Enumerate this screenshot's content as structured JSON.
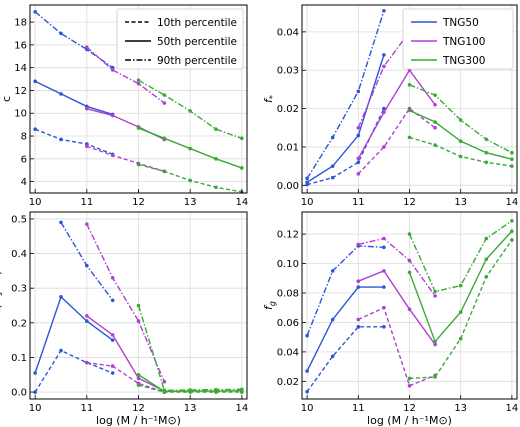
{
  "chart_data": [
    {
      "type": "line",
      "panel": "top-left",
      "ylabel": "c",
      "xlabel": "",
      "xlim": [
        9.9,
        14.1
      ],
      "ylim": [
        3,
        19.5
      ],
      "xticks": [
        10,
        11,
        12,
        13,
        14
      ],
      "yticks": [
        4,
        6,
        8,
        10,
        12,
        14,
        16,
        18
      ],
      "legend": {
        "placement": "top-right",
        "entries": [
          {
            "label": "10th percentile",
            "dash": "dashed"
          },
          {
            "label": "50th percentile",
            "dash": "solid"
          },
          {
            "label": "90th percentile",
            "dash": "dashdot"
          }
        ]
      },
      "series": [
        {
          "group": "TNG50",
          "color": "#2c55d8",
          "dash": "dashed",
          "x": [
            10,
            10.5,
            11,
            11.5
          ],
          "y": [
            8.6,
            7.7,
            7.3,
            6.4
          ]
        },
        {
          "group": "TNG50",
          "color": "#2c55d8",
          "dash": "solid",
          "x": [
            10,
            10.5,
            11,
            11.5
          ],
          "y": [
            12.8,
            11.7,
            10.6,
            9.9
          ]
        },
        {
          "group": "TNG50",
          "color": "#2c55d8",
          "dash": "dashdot",
          "x": [
            10,
            10.5,
            11,
            11.5
          ],
          "y": [
            18.9,
            17.0,
            15.6,
            14.0
          ]
        },
        {
          "group": "TNG100",
          "color": "#b040d0",
          "dash": "dashed",
          "x": [
            11,
            11.5,
            12,
            12.5
          ],
          "y": [
            7.1,
            6.3,
            5.6,
            4.9
          ]
        },
        {
          "group": "TNG100",
          "color": "#b040d0",
          "dash": "solid",
          "x": [
            11,
            11.5,
            12,
            12.5
          ],
          "y": [
            10.4,
            9.8,
            8.8,
            7.7
          ]
        },
        {
          "group": "TNG100",
          "color": "#b040d0",
          "dash": "dashdot",
          "x": [
            11,
            11.5,
            12,
            12.5
          ],
          "y": [
            15.8,
            13.8,
            12.6,
            10.9
          ]
        },
        {
          "group": "TNG300",
          "color": "#3aaa35",
          "dash": "dashed",
          "x": [
            12,
            12.5,
            13,
            13.5,
            14
          ],
          "y": [
            5.5,
            4.9,
            4.1,
            3.5,
            3.1
          ]
        },
        {
          "group": "TNG300",
          "color": "#3aaa35",
          "dash": "solid",
          "x": [
            12,
            12.5,
            13,
            13.5,
            14
          ],
          "y": [
            8.7,
            7.8,
            6.9,
            6.0,
            5.2
          ]
        },
        {
          "group": "TNG300",
          "color": "#3aaa35",
          "dash": "dashdot",
          "x": [
            12,
            12.5,
            13,
            13.5,
            14
          ],
          "y": [
            12.9,
            11.6,
            10.2,
            8.6,
            7.8
          ]
        }
      ]
    },
    {
      "type": "line",
      "panel": "top-right",
      "ylabel": "f",
      "ylabel_sub": "*",
      "xlabel": "",
      "xlim": [
        9.9,
        14.1
      ],
      "ylim": [
        -0.002,
        0.047
      ],
      "xticks": [
        10,
        11,
        12,
        13,
        14
      ],
      "yticks": [
        0.0,
        0.01,
        0.02,
        0.03,
        0.04
      ],
      "ytick_labels": [
        "0.00",
        "0.01",
        "0.02",
        "0.03",
        "0.04"
      ],
      "legend": {
        "placement": "top-right",
        "entries": [
          {
            "label": "TNG50",
            "color": "#2c55d8"
          },
          {
            "label": "TNG100",
            "color": "#b040d0"
          },
          {
            "label": "TNG300",
            "color": "#3aaa35"
          }
        ]
      },
      "series": [
        {
          "group": "TNG50",
          "color": "#2c55d8",
          "dash": "dashed",
          "x": [
            10,
            10.5,
            11,
            11.5
          ],
          "y": [
            0.0002,
            0.002,
            0.006,
            0.02
          ]
        },
        {
          "group": "TNG50",
          "color": "#2c55d8",
          "dash": "solid",
          "x": [
            10,
            10.5,
            11,
            11.5
          ],
          "y": [
            0.0008,
            0.005,
            0.013,
            0.034
          ]
        },
        {
          "group": "TNG50",
          "color": "#2c55d8",
          "dash": "dashdot",
          "x": [
            10,
            10.5,
            11,
            11.5
          ],
          "y": [
            0.0018,
            0.0125,
            0.0245,
            0.0455
          ]
        },
        {
          "group": "TNG100",
          "color": "#b040d0",
          "dash": "dashed",
          "x": [
            11,
            11.5,
            12,
            12.5
          ],
          "y": [
            0.003,
            0.01,
            0.02,
            0.015
          ]
        },
        {
          "group": "TNG100",
          "color": "#b040d0",
          "dash": "solid",
          "x": [
            11,
            11.5,
            12,
            12.5
          ],
          "y": [
            0.007,
            0.019,
            0.03,
            0.021
          ]
        },
        {
          "group": "TNG100",
          "color": "#b040d0",
          "dash": "dashdot",
          "x": [
            11,
            11.5,
            12,
            12.5
          ],
          "y": [
            0.015,
            0.031,
            0.04,
            0.034
          ]
        },
        {
          "group": "TNG300",
          "color": "#3aaa35",
          "dash": "dashed",
          "x": [
            12,
            12.5,
            13,
            13.5,
            14
          ],
          "y": [
            0.0125,
            0.0105,
            0.0075,
            0.006,
            0.005
          ]
        },
        {
          "group": "TNG300",
          "color": "#3aaa35",
          "dash": "solid",
          "x": [
            12,
            12.5,
            13,
            13.5,
            14
          ],
          "y": [
            0.0195,
            0.0165,
            0.0115,
            0.0085,
            0.0068
          ]
        },
        {
          "group": "TNG300",
          "color": "#3aaa35",
          "dash": "dashdot",
          "x": [
            12,
            12.5,
            13,
            13.5,
            14
          ],
          "y": [
            0.0262,
            0.0235,
            0.017,
            0.012,
            0.0085
          ]
        }
      ]
    },
    {
      "type": "line",
      "panel": "bottom-left",
      "ylabel": "SSFR (Gyr⁻¹)",
      "xlabel": "log (M / h⁻¹M⊙)",
      "xlim": [
        9.9,
        14.1
      ],
      "ylim": [
        -0.02,
        0.52
      ],
      "xticks": [
        10,
        11,
        12,
        13,
        14
      ],
      "yticks": [
        0.0,
        0.1,
        0.2,
        0.3,
        0.4,
        0.5
      ],
      "ytick_labels": [
        "0.0",
        "0.1",
        "0.2",
        "0.3",
        "0.4",
        "0.5"
      ],
      "series": [
        {
          "group": "TNG50",
          "color": "#2c55d8",
          "dash": "dashed",
          "x": [
            10,
            10.5,
            11,
            11.5
          ],
          "y": [
            0.0,
            0.12,
            0.085,
            0.055
          ]
        },
        {
          "group": "TNG50",
          "color": "#2c55d8",
          "dash": "solid",
          "x": [
            10,
            10.5,
            11,
            11.5
          ],
          "y": [
            0.055,
            0.275,
            0.205,
            0.15
          ]
        },
        {
          "group": "TNG50",
          "color": "#2c55d8",
          "dash": "dashdot",
          "x": [
            10.5,
            11,
            11.5
          ],
          "y": [
            0.49,
            0.365,
            0.265
          ]
        },
        {
          "group": "TNG100",
          "color": "#b040d0",
          "dash": "dashed",
          "x": [
            11,
            11.5,
            12,
            12.5
          ],
          "y": [
            0.085,
            0.075,
            0.025,
            0.0
          ]
        },
        {
          "group": "TNG100",
          "color": "#b040d0",
          "dash": "solid",
          "x": [
            11,
            11.5,
            12,
            12.5
          ],
          "y": [
            0.22,
            0.165,
            0.04,
            0.003
          ]
        },
        {
          "group": "TNG100",
          "color": "#b040d0",
          "dash": "dashdot",
          "x": [
            11,
            11.5,
            12,
            12.5
          ],
          "y": [
            0.485,
            0.33,
            0.205,
            0.03
          ]
        },
        {
          "group": "TNG300",
          "color": "#3aaa35",
          "dash": "dashed",
          "x": [
            12,
            12.5,
            13,
            13.5,
            14
          ],
          "y": [
            0.02,
            0.0,
            0.0,
            0.0,
            0.0
          ]
        },
        {
          "group": "TNG300",
          "color": "#3aaa35",
          "dash": "solid",
          "x": [
            12,
            12.5,
            13,
            13.5,
            14
          ],
          "y": [
            0.05,
            0.002,
            0.003,
            0.003,
            0.004
          ]
        },
        {
          "group": "TNG300",
          "color": "#3aaa35",
          "dash": "dashdot",
          "x": [
            12,
            12.5,
            13,
            13.5,
            14
          ],
          "y": [
            0.25,
            0.005,
            0.006,
            0.007,
            0.008
          ]
        }
      ]
    },
    {
      "type": "line",
      "panel": "bottom-right",
      "ylabel": "f",
      "ylabel_sub": "g",
      "xlabel": "log (M / h⁻¹M⊙)",
      "xlim": [
        9.9,
        14.1
      ],
      "ylim": [
        0.008,
        0.135
      ],
      "xticks": [
        10,
        11,
        12,
        13,
        14
      ],
      "yticks": [
        0.02,
        0.04,
        0.06,
        0.08,
        0.1,
        0.12
      ],
      "ytick_labels": [
        "0.02",
        "0.04",
        "0.06",
        "0.08",
        "0.10",
        "0.12"
      ],
      "series": [
        {
          "group": "TNG50",
          "color": "#2c55d8",
          "dash": "dashed",
          "x": [
            10,
            10.5,
            11,
            11.5
          ],
          "y": [
            0.013,
            0.037,
            0.057,
            0.057
          ]
        },
        {
          "group": "TNG50",
          "color": "#2c55d8",
          "dash": "solid",
          "x": [
            10,
            10.5,
            11,
            11.5
          ],
          "y": [
            0.027,
            0.062,
            0.084,
            0.084
          ]
        },
        {
          "group": "TNG50",
          "color": "#2c55d8",
          "dash": "dashdot",
          "x": [
            10,
            10.5,
            11,
            11.5
          ],
          "y": [
            0.051,
            0.095,
            0.112,
            0.111
          ]
        },
        {
          "group": "TNG100",
          "color": "#b040d0",
          "dash": "dashed",
          "x": [
            11,
            11.5,
            12,
            12.5
          ],
          "y": [
            0.062,
            0.07,
            0.017,
            0.024
          ]
        },
        {
          "group": "TNG100",
          "color": "#b040d0",
          "dash": "solid",
          "x": [
            11,
            11.5,
            12,
            12.5
          ],
          "y": [
            0.088,
            0.095,
            0.069,
            0.045
          ]
        },
        {
          "group": "TNG100",
          "color": "#b040d0",
          "dash": "dashdot",
          "x": [
            11,
            11.5,
            12,
            12.5
          ],
          "y": [
            0.113,
            0.117,
            0.102,
            0.078
          ]
        },
        {
          "group": "TNG300",
          "color": "#3aaa35",
          "dash": "dashed",
          "x": [
            12,
            12.5,
            13,
            13.5,
            14
          ],
          "y": [
            0.022,
            0.023,
            0.049,
            0.091,
            0.116
          ]
        },
        {
          "group": "TNG300",
          "color": "#3aaa35",
          "dash": "solid",
          "x": [
            12,
            12.5,
            13,
            13.5,
            14
          ],
          "y": [
            0.094,
            0.047,
            0.067,
            0.103,
            0.122
          ]
        },
        {
          "group": "TNG300",
          "color": "#3aaa35",
          "dash": "dashdot",
          "x": [
            12,
            12.5,
            13,
            13.5,
            14
          ],
          "y": [
            0.12,
            0.081,
            0.085,
            0.117,
            0.129
          ]
        }
      ]
    }
  ]
}
